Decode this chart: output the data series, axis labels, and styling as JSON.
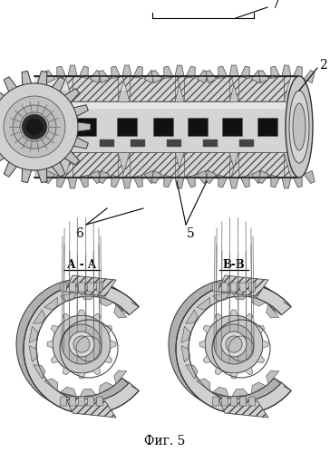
{
  "caption": "Фиг. 5",
  "label_7": "7",
  "label_2": "2",
  "label_6": "6",
  "label_5": "5",
  "label_AA": "А - А",
  "label_BB": "В-В",
  "bg_color": "#ffffff",
  "shaft_color": "#cccccc",
  "slot_color": "#1a1a1a",
  "line_color": "#000000",
  "gear_gray": "#b8b8b8",
  "gear_light": "#e0e0e0",
  "gear_dark": "#888888",
  "hatch_bg": "#d8d8d8"
}
